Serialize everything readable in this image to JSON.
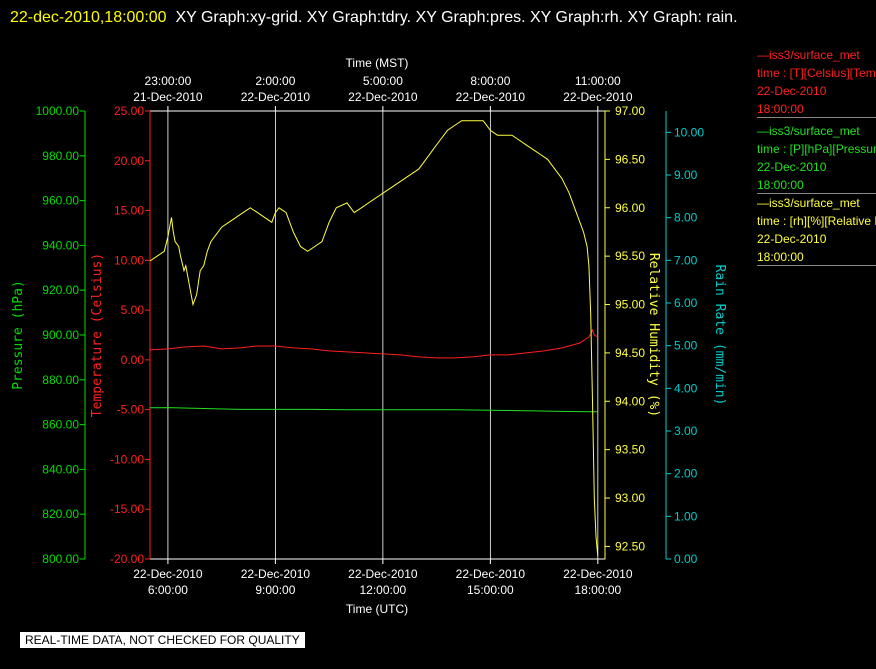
{
  "header": {
    "timestamp": "22-dec-2010,18:00:00",
    "graphs": "XY Graph:xy-grid.  XY Graph:tdry.  XY Graph:pres.  XY Graph:rh.  XY Graph: rain."
  },
  "legend": [
    {
      "line1": "—iss3/surface_met",
      "line2": "time : [T][Celsius][Temperature]",
      "line3": "22-Dec-2010",
      "line4": "18:00:00",
      "color": "#ff2020"
    },
    {
      "line1": "—iss3/surface_met",
      "line2": "time : [P][hPa][Pressure]",
      "line3": "22-Dec-2010",
      "line4": "18:00:00",
      "color": "#20e020"
    },
    {
      "line1": "—iss3/surface_met",
      "line2": "time : [rh][%][Relative Humidity]",
      "line3": "22-Dec-2010",
      "line4": "18:00:00",
      "color": "#ffff40"
    }
  ],
  "notice": "REAL-TIME DATA, NOT CHECKED FOR QUALITY",
  "chart_data": {
    "type": "line",
    "xlabel_bottom": "Time (UTC)",
    "xlabel_top": "Time (MST)",
    "xlim_hours_utc": [
      5.5,
      18.2
    ],
    "x_ticks_bottom": [
      {
        "date": "22-Dec-2010",
        "time": "6:00:00",
        "hour": 6
      },
      {
        "date": "22-Dec-2010",
        "time": "9:00:00",
        "hour": 9
      },
      {
        "date": "22-Dec-2010",
        "time": "12:00:00",
        "hour": 12
      },
      {
        "date": "22-Dec-2010",
        "time": "15:00:00",
        "hour": 15
      },
      {
        "date": "22-Dec-2010",
        "time": "18:00:00",
        "hour": 18
      }
    ],
    "x_ticks_top": [
      {
        "time": "23:00:00",
        "date": "21-Dec-2010",
        "hour": 6
      },
      {
        "time": "2:00:00",
        "date": "22-Dec-2010",
        "hour": 9
      },
      {
        "time": "5:00:00",
        "date": "22-Dec-2010",
        "hour": 12
      },
      {
        "time": "8:00:00",
        "date": "22-Dec-2010",
        "hour": 15
      },
      {
        "time": "11:00:00",
        "date": "22-Dec-2010",
        "hour": 18
      }
    ],
    "axes": {
      "pressure": {
        "label": "Pressure (hPa)",
        "color": "#00dd00",
        "ylim": [
          800,
          1000
        ],
        "ticks": [
          "800.00",
          "820.00",
          "840.00",
          "860.00",
          "880.00",
          "900.00",
          "920.00",
          "940.00",
          "960.00",
          "980.00",
          "1000.00"
        ]
      },
      "temperature": {
        "label": "Temperature (Celsius)",
        "color": "#ff2020",
        "ylim": [
          -20,
          25
        ],
        "ticks": [
          "-20.00",
          "-15.00",
          "-10.00",
          "-5.00",
          "0.00",
          "5.00",
          "10.00",
          "15.00",
          "20.00",
          "25.00"
        ]
      },
      "rh": {
        "label": "Relative Humidity (%)",
        "color": "#ffff40",
        "ylim": [
          92.37,
          97.0
        ],
        "ticks": [
          "92.50",
          "93.00",
          "93.50",
          "94.00",
          "94.50",
          "95.00",
          "95.50",
          "96.00",
          "96.50",
          "97.00"
        ]
      },
      "rain": {
        "label": "Rain Rate (mm/min)",
        "color": "#00cccc",
        "ylim": [
          0,
          10.5
        ],
        "ticks": [
          "0.00",
          "1.00",
          "2.00",
          "3.00",
          "4.00",
          "5.00",
          "6.00",
          "7.00",
          "8.00",
          "9.00",
          "10.00"
        ]
      }
    },
    "series": [
      {
        "name": "Temperature",
        "axis": "temperature",
        "color": "#ff2020",
        "x": [
          5.5,
          6.0,
          6.5,
          7.0,
          7.5,
          8.0,
          8.5,
          9.0,
          9.5,
          10.0,
          10.5,
          11.0,
          11.5,
          12.0,
          12.5,
          13.0,
          13.5,
          14.0,
          14.5,
          15.0,
          15.5,
          16.0,
          16.5,
          17.0,
          17.5,
          17.7,
          17.75,
          17.8,
          17.85,
          17.9,
          18.0
        ],
        "y": [
          1.0,
          1.1,
          1.3,
          1.4,
          1.1,
          1.2,
          1.4,
          1.4,
          1.2,
          1.1,
          0.9,
          0.8,
          0.7,
          0.6,
          0.5,
          0.3,
          0.2,
          0.2,
          0.3,
          0.5,
          0.5,
          0.7,
          0.9,
          1.2,
          1.7,
          2.2,
          2.3,
          2.6,
          3.0,
          2.5,
          2.3
        ]
      },
      {
        "name": "Pressure",
        "axis": "pressure",
        "color": "#20e020",
        "x": [
          5.5,
          6.0,
          7.0,
          8.0,
          9.0,
          10.0,
          11.0,
          12.0,
          13.0,
          14.0,
          15.0,
          16.0,
          17.0,
          17.5,
          17.9,
          18.0
        ],
        "y": [
          867.5,
          867.6,
          867.2,
          866.8,
          866.8,
          866.8,
          866.6,
          866.6,
          866.6,
          866.6,
          866.4,
          866.2,
          865.9,
          865.8,
          865.7,
          865.7
        ]
      },
      {
        "name": "Relative Humidity",
        "axis": "rh",
        "color": "#ffff40",
        "x": [
          5.5,
          5.7,
          5.9,
          6.0,
          6.1,
          6.15,
          6.2,
          6.3,
          6.35,
          6.45,
          6.5,
          6.6,
          6.7,
          6.8,
          6.9,
          7.0,
          7.1,
          7.2,
          7.3,
          7.5,
          7.7,
          7.9,
          8.1,
          8.3,
          8.5,
          8.7,
          8.9,
          9.0,
          9.1,
          9.3,
          9.5,
          9.7,
          9.9,
          10.1,
          10.3,
          10.5,
          10.7,
          11.0,
          11.2,
          11.4,
          11.6,
          11.8,
          12.0,
          12.2,
          12.4,
          12.6,
          12.8,
          13.0,
          13.2,
          13.4,
          13.6,
          13.8,
          14.0,
          14.2,
          14.4,
          14.6,
          14.8,
          15.0,
          15.2,
          15.4,
          15.6,
          15.8,
          16.0,
          16.2,
          16.4,
          16.6,
          16.8,
          17.0,
          17.2,
          17.4,
          17.5,
          17.6,
          17.7,
          17.75,
          17.8,
          17.85,
          17.9,
          17.95,
          18.0
        ],
        "y": [
          95.45,
          95.5,
          95.55,
          95.7,
          95.9,
          95.75,
          95.65,
          95.6,
          95.5,
          95.35,
          95.4,
          95.2,
          95.0,
          95.1,
          95.35,
          95.4,
          95.55,
          95.65,
          95.7,
          95.8,
          95.85,
          95.9,
          95.95,
          96.0,
          95.95,
          95.9,
          95.85,
          95.95,
          96.0,
          95.95,
          95.75,
          95.6,
          95.55,
          95.6,
          95.65,
          95.85,
          96.0,
          96.05,
          95.95,
          96.0,
          96.05,
          96.1,
          96.15,
          96.2,
          96.25,
          96.3,
          96.35,
          96.4,
          96.5,
          96.6,
          96.7,
          96.8,
          96.85,
          96.9,
          96.9,
          96.9,
          96.9,
          96.8,
          96.75,
          96.75,
          96.75,
          96.7,
          96.65,
          96.6,
          96.55,
          96.5,
          96.4,
          96.3,
          96.15,
          95.95,
          95.85,
          95.75,
          95.6,
          95.4,
          94.9,
          94.0,
          93.0,
          92.6,
          92.4
        ]
      }
    ],
    "grid": true
  }
}
